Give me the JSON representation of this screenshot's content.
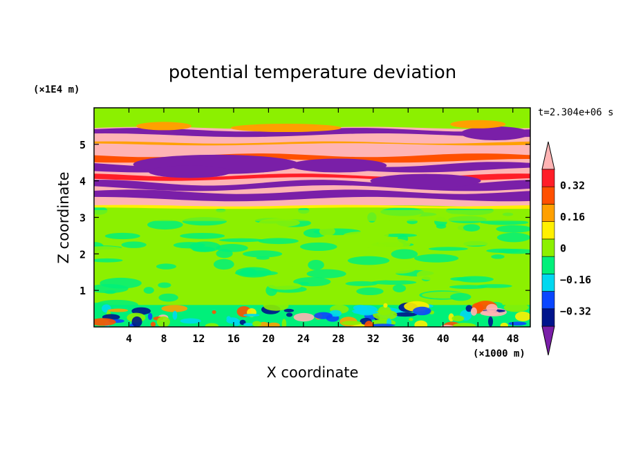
{
  "chart_data": {
    "type": "heatmap",
    "title": "potential temperature deviation",
    "xlabel": "X coordinate",
    "ylabel": "Z coordinate",
    "x_unit": "(×1000 m)",
    "y_unit": "(×1E4 m)",
    "time_label": "t=2.304e+06 s",
    "xlim": [
      0,
      50
    ],
    "ylim": [
      0,
      6
    ],
    "x_ticks": [
      4,
      8,
      12,
      16,
      20,
      24,
      28,
      32,
      36,
      40,
      44,
      48
    ],
    "y_ticks": [
      1,
      2,
      3,
      4,
      5
    ],
    "colorbar": {
      "levels": [
        -0.4,
        -0.32,
        -0.24,
        -0.16,
        -0.08,
        0,
        0.08,
        0.16,
        0.24,
        0.32,
        0.4
      ],
      "tick_values": [
        "0.32",
        "0.16",
        "0",
        "−0.16",
        "−0.32"
      ],
      "colors": [
        "#7a1fa8",
        "#00148c",
        "#0a46ff",
        "#00d8f0",
        "#00f07a",
        "#8cf000",
        "#fff000",
        "#ffa000",
        "#ff5000",
        "#ff1e28",
        "#ffb4b4"
      ],
      "extend": "both"
    },
    "regions": [
      {
        "z_range": [
          0,
          0.6
        ],
        "description": "near-surface turbulent layer, mixed values"
      },
      {
        "z_range": [
          0.6,
          3.2
        ],
        "dominant_value_range": [
          0,
          0.08
        ]
      },
      {
        "z_range": [
          3.2,
          5.5
        ],
        "description": "alternating strong positive (>0.4) and negative (<-0.4) horizontal bands"
      },
      {
        "z_range": [
          5.5,
          6.0
        ],
        "dominant_value_range": [
          -0.08,
          0.08
        ]
      }
    ]
  }
}
